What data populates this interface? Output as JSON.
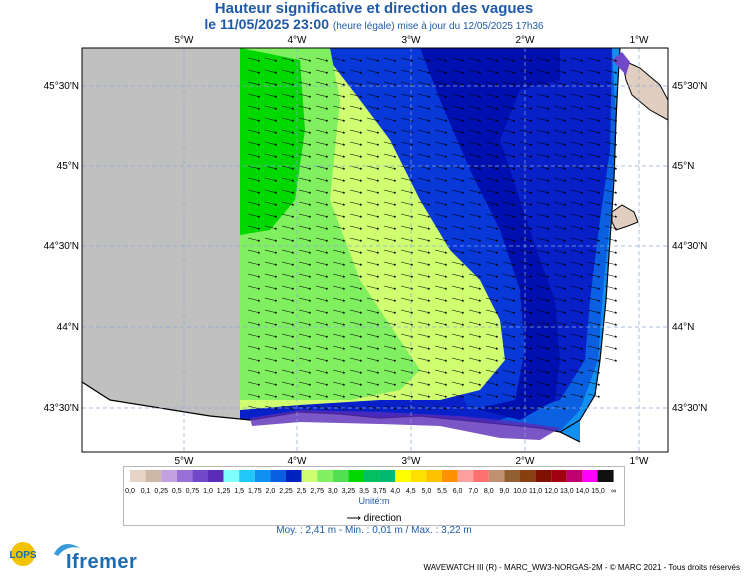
{
  "title": "Hauteur significative et direction des vagues",
  "subtitle_date": "le 11/05/2025 23:00",
  "subtitle_note": "(heure légale) mise à jour du 12/05/2025 17h36",
  "lon_labels": [
    "5°W",
    "4°W",
    "3°W",
    "2°W",
    "1°W"
  ],
  "lat_labels": [
    "45°30'N",
    "45°N",
    "44°30'N",
    "44°N",
    "43°30'N"
  ],
  "legend": {
    "values": [
      "0,0",
      "0,1",
      "0,25",
      "0,5",
      "0,75",
      "1,0",
      "1,25",
      "1,5",
      "1,75",
      "2,0",
      "2,25",
      "2,5",
      "2,75",
      "3,0",
      "3,25",
      "3,5",
      "3,75",
      "4,0",
      "4,5",
      "5,0",
      "5,5",
      "6,0",
      "7,0",
      "8,0",
      "9,0",
      "10,0",
      "11,0",
      "12,0",
      "13,0",
      "14,0",
      "15,0",
      "∞"
    ],
    "colors": [
      "#e5d4c6",
      "#cdb8a8",
      "#c5a0e0",
      "#9a70d8",
      "#7048c8",
      "#5a2cb8",
      "#80ffff",
      "#20c8f8",
      "#1090f0",
      "#0860e0",
      "#0020c0",
      "#cfff70",
      "#80f060",
      "#50e050",
      "#00d800",
      "#00c060",
      "#00b870",
      "#ffff00",
      "#ffe000",
      "#ffc000",
      "#ff9000",
      "#ffa0a0",
      "#ff7070",
      "#c09070",
      "#906030",
      "#884010",
      "#801000",
      "#a00010",
      "#c00070",
      "#ff00ff",
      "#101010"
    ],
    "unit": "Unité:m"
  },
  "direction_label": "direction",
  "stats": "Moy. : 2,41 m   -   Min. : 0,01 m / Max. : 3,22 m",
  "footer": "WAVEWATCH III (R) - MARC_WW3-NORGAS-2M - © MARC 2021 - Tous droits réservés",
  "logos": {
    "lops": "LOPS",
    "ifremer": "Ifremer"
  },
  "colors": {
    "land": "#c0c0c0",
    "coast_land": "#e0cfc0",
    "title": "#1f5aa6"
  }
}
